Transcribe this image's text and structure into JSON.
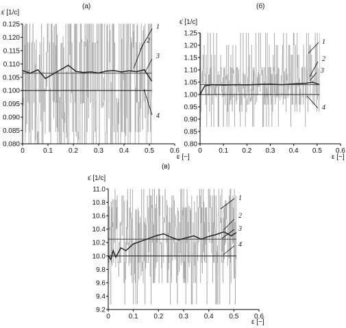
{
  "chart_data": [
    {
      "type": "line",
      "panel_label": "(а)",
      "ylabel": "ε̇ [1/c]",
      "xlabel": "ε [−]",
      "xlim": [
        0,
        0.6
      ],
      "ylim": [
        0.08,
        0.125
      ],
      "x_ticks": [
        "0",
        "0.1",
        "0.2",
        "0.3",
        "0.4",
        "0.5",
        "0.6"
      ],
      "y_ticks": [
        "0.080",
        "0.085",
        "0.090",
        "0.095",
        "0.100",
        "0.105",
        "0.110",
        "0.115",
        "0.120",
        "0.125"
      ],
      "series": [
        {
          "label": "1",
          "color": "#9a9a9a",
          "x_range": [
            0,
            0.51
          ],
          "mean": 0.1065,
          "spread": 0.03,
          "levels": [
            0.0845,
            0.0955,
            0.107,
            0.118,
            0.125,
            0.08
          ]
        },
        {
          "label": "2",
          "color": "#222222",
          "x": [
            0.0,
            0.03,
            0.06,
            0.09,
            0.12,
            0.15,
            0.18,
            0.21,
            0.24,
            0.27,
            0.3,
            0.33,
            0.36,
            0.39,
            0.42,
            0.45,
            0.48,
            0.51
          ],
          "y": [
            0.1075,
            0.1065,
            0.1078,
            0.1045,
            0.1062,
            0.1078,
            0.1095,
            0.1072,
            0.1068,
            0.107,
            0.1066,
            0.1073,
            0.1075,
            0.107,
            0.1074,
            0.1071,
            0.1078,
            0.1035
          ]
        },
        {
          "label": "3",
          "color": "#555555",
          "x": [
            0,
            0.51
          ],
          "y": [
            0.1065,
            0.1065
          ]
        },
        {
          "label": "4",
          "color": "#222222",
          "x": [
            0,
            0.51
          ],
          "y": [
            0.1,
            0.1
          ]
        }
      ]
    },
    {
      "type": "line",
      "panel_label": "(б)",
      "ylabel": "ε̇ [1/c]",
      "xlabel": "ε [−]",
      "xlim": [
        0,
        0.6
      ],
      "ylim": [
        0.8,
        1.25
      ],
      "x_ticks": [
        "0",
        "0.1",
        "0.2",
        "0.3",
        "0.4",
        "0.5",
        "0.6"
      ],
      "y_ticks": [
        "0.80",
        "0.85",
        "0.90",
        "0.95",
        "1.00",
        "1.05",
        "1.10",
        "1.15",
        "1.20",
        "1.25"
      ],
      "series": [
        {
          "label": "1",
          "color": "#9a9a9a",
          "x_range": [
            0,
            0.51
          ],
          "mean": 1.04,
          "spread": 0.07,
          "levels": [
            0.93,
            0.96,
            0.99,
            1.04,
            1.08,
            1.11,
            1.16,
            1.2,
            1.25,
            0.87
          ]
        },
        {
          "label": "2",
          "color": "#222222",
          "x": [
            0.0,
            0.02,
            0.05,
            0.1,
            0.15,
            0.2,
            0.25,
            0.3,
            0.35,
            0.4,
            0.45,
            0.48,
            0.51
          ],
          "y": [
            1.0,
            1.035,
            1.04,
            1.038,
            1.04,
            1.039,
            1.041,
            1.042,
            1.04,
            1.043,
            1.045,
            1.05,
            1.04
          ]
        },
        {
          "label": "3",
          "color": "#555555",
          "x": [
            0,
            0.51
          ],
          "y": [
            1.04,
            1.04
          ]
        },
        {
          "label": "4",
          "color": "#222222",
          "x": [
            0,
            0.51
          ],
          "y": [
            1.0,
            1.0
          ]
        }
      ]
    },
    {
      "type": "line",
      "panel_label": "(в)",
      "ylabel": "ε̇ [1/c]",
      "xlabel": "ε [−]",
      "xlim": [
        0,
        0.6
      ],
      "ylim": [
        9.2,
        11.0
      ],
      "x_ticks": [
        "0",
        "0.1",
        "0.2",
        "0.3",
        "0.4",
        "0.5",
        "0.6"
      ],
      "y_ticks": [
        "9.2",
        "9.4",
        "9.6",
        "9.8",
        "10.0",
        "10.2",
        "10.4",
        "10.6",
        "10.8",
        "11.0"
      ],
      "series": [
        {
          "label": "1",
          "color": "#9a9a9a",
          "x_range": [
            0,
            0.51
          ],
          "mean": 10.25,
          "spread": 0.6,
          "levels": [
            9.28,
            9.6,
            9.9,
            10.2,
            10.5,
            10.72,
            10.9,
            11.0
          ]
        },
        {
          "label": "2",
          "color": "#222222",
          "x": [
            0.0,
            0.01,
            0.02,
            0.03,
            0.05,
            0.07,
            0.1,
            0.13,
            0.16,
            0.19,
            0.22,
            0.25,
            0.28,
            0.31,
            0.34,
            0.37,
            0.4,
            0.43,
            0.46,
            0.49,
            0.51
          ],
          "y": [
            10.0,
            9.95,
            10.08,
            9.98,
            10.12,
            10.08,
            10.18,
            10.22,
            10.26,
            10.3,
            10.33,
            10.28,
            10.24,
            10.27,
            10.3,
            10.25,
            10.29,
            10.32,
            10.36,
            10.3,
            10.35
          ]
        },
        {
          "label": "3",
          "color": "#555555",
          "x": [
            0,
            0.51
          ],
          "y": [
            10.25,
            10.25
          ]
        },
        {
          "label": "4",
          "color": "#222222",
          "x": [
            0,
            0.51
          ],
          "y": [
            10.0,
            10.0
          ]
        }
      ]
    }
  ]
}
